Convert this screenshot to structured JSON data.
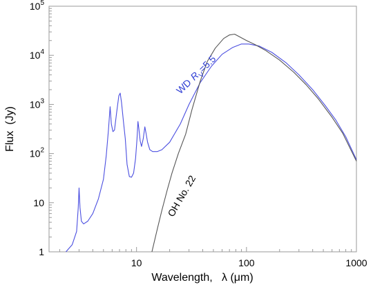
{
  "chart_data": {
    "type": "line",
    "xlabel": "Wavelength,   λ (μm)",
    "ylabel": "Flux  (Jy)",
    "xscale": "log",
    "yscale": "log",
    "xlim": [
      1.6,
      1000
    ],
    "ylim": [
      1,
      100000
    ],
    "grid": false,
    "legend": "none",
    "x_ticks": [
      {
        "value": 10,
        "label": "10"
      },
      {
        "value": 100,
        "label": "100"
      },
      {
        "value": 1000,
        "label": "1000"
      }
    ],
    "y_ticks": [
      {
        "value": 1,
        "label": "1"
      },
      {
        "value": 10,
        "label": "10"
      },
      {
        "value": 100,
        "label": "10",
        "exp": "2"
      },
      {
        "value": 1000,
        "label": "10",
        "exp": "3"
      },
      {
        "value": 10000,
        "label": "10",
        "exp": "4"
      },
      {
        "value": 100000,
        "label": "10",
        "exp": "5"
      }
    ],
    "series": [
      {
        "name": "WD R_V=5.5",
        "color": "#4a4ee0",
        "points": [
          [
            2.28,
            1.0
          ],
          [
            2.6,
            1.4
          ],
          [
            2.85,
            2.6
          ],
          [
            2.95,
            8
          ],
          [
            3.0,
            20
          ],
          [
            3.06,
            8
          ],
          [
            3.15,
            4.2
          ],
          [
            3.3,
            3.7
          ],
          [
            3.6,
            4.2
          ],
          [
            4.0,
            6
          ],
          [
            4.5,
            12
          ],
          [
            5.0,
            30
          ],
          [
            5.3,
            90
          ],
          [
            5.55,
            300
          ],
          [
            5.75,
            900
          ],
          [
            5.9,
            400
          ],
          [
            6.1,
            280
          ],
          [
            6.3,
            300
          ],
          [
            6.6,
            700
          ],
          [
            6.9,
            1500
          ],
          [
            7.1,
            1700
          ],
          [
            7.3,
            1100
          ],
          [
            7.6,
            450
          ],
          [
            7.9,
            200
          ],
          [
            8.2,
            60
          ],
          [
            8.6,
            34
          ],
          [
            9.0,
            33
          ],
          [
            9.4,
            40
          ],
          [
            9.8,
            80
          ],
          [
            10.1,
            200
          ],
          [
            10.3,
            450
          ],
          [
            10.5,
            320
          ],
          [
            10.8,
            180
          ],
          [
            11.1,
            140
          ],
          [
            11.5,
            200
          ],
          [
            11.9,
            350
          ],
          [
            12.2,
            260
          ],
          [
            12.6,
            170
          ],
          [
            13.2,
            120
          ],
          [
            14.0,
            110
          ],
          [
            15.5,
            110
          ],
          [
            17.0,
            120
          ],
          [
            20,
            170
          ],
          [
            25,
            400
          ],
          [
            30,
            1000
          ],
          [
            38,
            2800
          ],
          [
            48,
            6000
          ],
          [
            60,
            10500
          ],
          [
            75,
            14500
          ],
          [
            90,
            17000
          ],
          [
            105,
            17000
          ],
          [
            130,
            15500
          ],
          [
            170,
            11500
          ],
          [
            230,
            7000
          ],
          [
            300,
            4000
          ],
          [
            400,
            2000
          ],
          [
            520,
            950
          ],
          [
            650,
            480
          ],
          [
            800,
            220
          ],
          [
            1000,
            75
          ]
        ]
      },
      {
        "name": "OH  No. 22",
        "color": "#555555",
        "points": [
          [
            13.8,
            1.0
          ],
          [
            15.5,
            3
          ],
          [
            17.0,
            7
          ],
          [
            19.0,
            18
          ],
          [
            21.0,
            40
          ],
          [
            24.0,
            100
          ],
          [
            28.0,
            250
          ],
          [
            32.0,
            800
          ],
          [
            38.0,
            3000
          ],
          [
            44.0,
            7500
          ],
          [
            52.0,
            14000
          ],
          [
            62.0,
            22000
          ],
          [
            70.0,
            26000
          ],
          [
            78.0,
            27000
          ],
          [
            86.0,
            24000
          ],
          [
            100.0,
            20000
          ],
          [
            120.0,
            16500
          ],
          [
            150.0,
            12500
          ],
          [
            200.0,
            8000
          ],
          [
            270.0,
            4500
          ],
          [
            350.0,
            2500
          ],
          [
            450.0,
            1300
          ],
          [
            600.0,
            550
          ],
          [
            750.0,
            260
          ],
          [
            1000.0,
            70
          ]
        ]
      }
    ],
    "annotations": [
      {
        "text": "WD",
        "sub_main": "R",
        "sub": "V",
        "tail": "=5.5",
        "color": "#2f3ed4",
        "x": 25,
        "y": 1600,
        "angle": -44
      },
      {
        "text": "OH  No. 22",
        "color": "#000000",
        "x": 21.5,
        "y": 5,
        "angle": -60
      }
    ]
  }
}
